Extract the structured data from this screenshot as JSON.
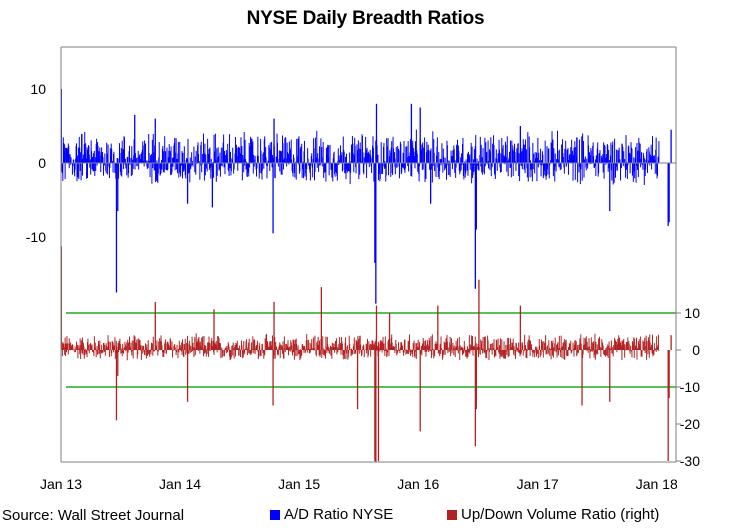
{
  "chart_data": {
    "type": "bar",
    "title": "NYSE Daily Breadth Ratios",
    "source": "Source: Wall Street Journal",
    "x_tick_labels": [
      "Jan 13",
      "Jan 14",
      "Jan 15",
      "Jan 16",
      "Jan 17",
      "Jan 18"
    ],
    "x_range": [
      "2013-01-01",
      "2018-03-01"
    ],
    "left_axis": {
      "ticks": [
        "10",
        "0",
        "-10"
      ],
      "ylim": [
        -24,
        10
      ],
      "series": "A/D Ratio NYSE"
    },
    "right_axis": {
      "ticks": [
        "10",
        "0",
        "-10",
        "-20",
        "-30"
      ],
      "ylim": [
        -30,
        10
      ],
      "series": "Up/Down Volume Ratio (right)"
    },
    "reference_lines_right": [
      10,
      -10
    ],
    "colors": {
      "ad": "#0000ff",
      "ud": "#b22222",
      "ref": "#22aa22",
      "axis": "#7f7f7f"
    },
    "series": [
      {
        "name": "A/D Ratio NYSE",
        "axis": "left",
        "color": "#0000ff",
        "spikes": [
          {
            "x": "2013-01-02",
            "y": 10.0
          },
          {
            "x": "2013-06-20",
            "y": -17.5
          },
          {
            "x": "2013-06-24",
            "y": -6.5
          },
          {
            "x": "2013-08-15",
            "y": 6.5
          },
          {
            "x": "2013-10-17",
            "y": 6.0
          },
          {
            "x": "2014-01-24",
            "y": -5.5
          },
          {
            "x": "2014-04-10",
            "y": -6.0
          },
          {
            "x": "2014-10-13",
            "y": -9.5
          },
          {
            "x": "2014-10-16",
            "y": 6.0
          },
          {
            "x": "2015-08-24",
            "y": -19.0
          },
          {
            "x": "2015-08-26",
            "y": 8.0
          },
          {
            "x": "2015-08-21",
            "y": -13.5
          },
          {
            "x": "2015-12-11",
            "y": 8.0
          },
          {
            "x": "2016-01-07",
            "y": 7.5
          },
          {
            "x": "2016-02-08",
            "y": -5.5
          },
          {
            "x": "2016-06-24",
            "y": -17.0
          },
          {
            "x": "2016-06-27",
            "y": -9.0
          },
          {
            "x": "2016-11-09",
            "y": 5.0
          },
          {
            "x": "2017-08-10",
            "y": -6.5
          },
          {
            "x": "2018-02-05",
            "y": -8.5
          },
          {
            "x": "2018-02-08",
            "y": -8.0
          },
          {
            "x": "2018-02-14",
            "y": 4.5
          }
        ],
        "noise_amplitude": 3
      },
      {
        "name": "Up/Down Volume Ratio (right)",
        "axis": "right",
        "color": "#b22222",
        "spikes": [
          {
            "x": "2013-01-02",
            "y": 28
          },
          {
            "x": "2013-06-20",
            "y": -19
          },
          {
            "x": "2013-06-24",
            "y": -7
          },
          {
            "x": "2013-10-17",
            "y": 13
          },
          {
            "x": "2014-01-24",
            "y": -14
          },
          {
            "x": "2014-04-15",
            "y": 11
          },
          {
            "x": "2014-10-13",
            "y": -15
          },
          {
            "x": "2014-10-16",
            "y": 13
          },
          {
            "x": "2015-03-10",
            "y": 17
          },
          {
            "x": "2015-06-29",
            "y": -16
          },
          {
            "x": "2015-08-21",
            "y": -30
          },
          {
            "x": "2015-08-24",
            "y": -38
          },
          {
            "x": "2015-08-26",
            "y": 12
          },
          {
            "x": "2015-09-01",
            "y": -30
          },
          {
            "x": "2015-10-05",
            "y": 10
          },
          {
            "x": "2016-01-07",
            "y": -22
          },
          {
            "x": "2016-03-01",
            "y": 12
          },
          {
            "x": "2016-06-24",
            "y": -26
          },
          {
            "x": "2016-06-27",
            "y": -16
          },
          {
            "x": "2016-07-05",
            "y": 19
          },
          {
            "x": "2016-11-09",
            "y": 12
          },
          {
            "x": "2017-05-17",
            "y": -15
          },
          {
            "x": "2017-08-10",
            "y": -14
          },
          {
            "x": "2018-02-05",
            "y": -30
          },
          {
            "x": "2018-02-08",
            "y": -13
          },
          {
            "x": "2018-02-14",
            "y": 4
          }
        ],
        "noise_amplitude": 3
      }
    ]
  }
}
